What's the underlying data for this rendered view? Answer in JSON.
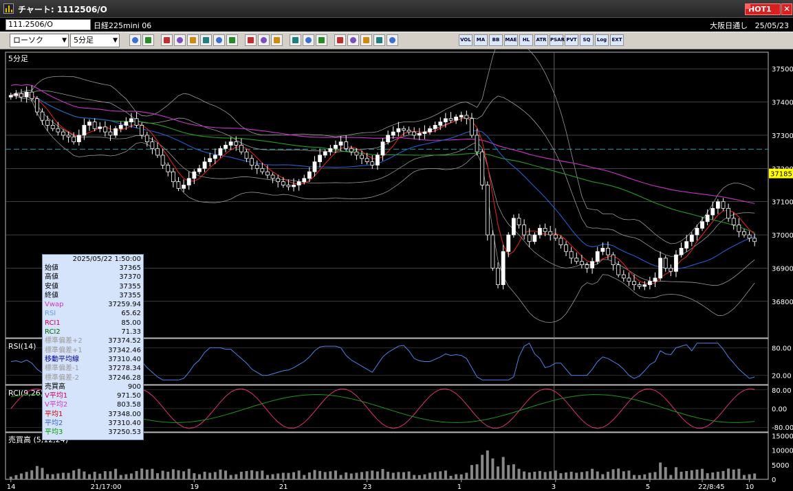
{
  "window": {
    "title": "チャート: 1112506/O",
    "hot_badge": "HOT1",
    "close_glyph": "✕"
  },
  "infobar": {
    "symbol_code": "111.2506/O",
    "symbol_name": "日経225mini 06",
    "market": "大阪日通し",
    "date": "25/05/23"
  },
  "toolbar": {
    "chart_type": "ローソク",
    "interval": "5分足",
    "buttons": [
      "search-icon",
      "window-icon",
      "pencil-icon",
      "magnet-icon",
      "cursor-icon",
      "undo-icon",
      "list-icon",
      "trash-icon",
      "candle-icon",
      "candle-icon",
      "all-icon",
      "settings-icon",
      "brush-icon",
      "palette-icon",
      "hand-icon",
      "zoom-icon",
      "grid-icon",
      "marker-icon",
      "alert-icon"
    ],
    "text_buttons": [
      "VOL",
      "MA",
      "BB",
      "MAE",
      "HL",
      "ATR",
      "PSAR",
      "PVT",
      "SQ",
      "Log",
      "EXT"
    ],
    "accent": "#d4d0c8"
  },
  "chart_data": {
    "type": "candlestick",
    "interval_label": "5分足",
    "price_axis": {
      "ticks": [
        37500,
        37400,
        37300,
        37200,
        37100,
        37000,
        36900,
        36800
      ],
      "current_price": "37185",
      "ylim": [
        36690,
        37550
      ]
    },
    "x_ticks": [
      "14",
      "21/17:00",
      "19",
      "21",
      "23",
      "1",
      "3",
      "5",
      "22/8:45",
      "10"
    ],
    "close": [
      37420,
      37425,
      37415,
      37430,
      37410,
      37370,
      37345,
      37330,
      37320,
      37310,
      37300,
      37295,
      37280,
      37300,
      37330,
      37340,
      37320,
      37325,
      37310,
      37300,
      37320,
      37330,
      37340,
      37350,
      37330,
      37300,
      37280,
      37260,
      37240,
      37210,
      37190,
      37160,
      37140,
      37150,
      37170,
      37190,
      37200,
      37220,
      37230,
      37240,
      37260,
      37270,
      37280,
      37270,
      37250,
      37230,
      37210,
      37200,
      37190,
      37180,
      37170,
      37160,
      37150,
      37145,
      37150,
      37160,
      37170,
      37190,
      37220,
      37240,
      37250,
      37260,
      37270,
      37280,
      37260,
      37250,
      37240,
      37230,
      37220,
      37210,
      37240,
      37280,
      37300,
      37310,
      37320,
      37315,
      37310,
      37300,
      37305,
      37310,
      37320,
      37330,
      37340,
      37350,
      37345,
      37355,
      37360,
      37350,
      37300,
      37250,
      37150,
      37000,
      36900,
      36850,
      36950,
      37000,
      37050,
      37030,
      37000,
      36980,
      37000,
      37020,
      37010,
      37000,
      36990,
      36970,
      36950,
      36930,
      36920,
      36910,
      36900,
      36920,
      36950,
      36960,
      36940,
      36910,
      36880,
      36870,
      36860,
      36850,
      36845,
      36850,
      36860,
      36870,
      36930,
      36900,
      36890,
      36940,
      36960,
      36980,
      37000,
      37020,
      37040,
      37060,
      37080,
      37100,
      37080,
      37050,
      37030,
      37010,
      37000,
      36990,
      36980
    ],
    "overlays": {
      "vwap": "37259.94",
      "bb_ma": "37310.40",
      "mid_line": 37258
    },
    "indicators": {
      "rsi": {
        "label": "RSI(14)",
        "ticks": [
          "80.00",
          "20.00"
        ]
      },
      "rci": {
        "label": "RCI(9,26)",
        "ticks": [
          "80.00",
          "0.00",
          "-80.00"
        ]
      },
      "volume": {
        "label": "売買高 (5,12,24)",
        "ticks": [
          "15000",
          "10000",
          "5000",
          "0"
        ]
      }
    },
    "series": [
      {
        "name": "Vwap",
        "color": "#cc33cc"
      },
      {
        "name": "移動平均線",
        "color": "#2060d0"
      },
      {
        "name": "平均1",
        "color": "#e02020"
      },
      {
        "name": "平均3",
        "color": "#20a020"
      }
    ]
  },
  "info_panel": {
    "timestamp": "2025/05/22 1:50:00",
    "rows": [
      {
        "label": "始値",
        "value": "37365",
        "color": "#000000"
      },
      {
        "label": "高値",
        "value": "37370",
        "color": "#000000"
      },
      {
        "label": "安値",
        "value": "37355",
        "color": "#000000"
      },
      {
        "label": "終値",
        "value": "37355",
        "color": "#000000"
      },
      {
        "label": "Vwap",
        "value": "37259.94",
        "color": "#cc33cc"
      },
      {
        "label": "RSI",
        "value": "65.62",
        "color": "#6699ff"
      },
      {
        "label": "RCI1",
        "value": "85.00",
        "color": "#cc0066"
      },
      {
        "label": "RCI2",
        "value": "71.33",
        "color": "#006600"
      },
      {
        "label": "標準偏差+2",
        "value": "37374.52",
        "color": "#999999"
      },
      {
        "label": "標準偏差+1",
        "value": "37342.46",
        "color": "#999999"
      },
      {
        "label": "移動平均線",
        "value": "37310.40",
        "color": "#000099"
      },
      {
        "label": "標準偏差-1",
        "value": "37278.34",
        "color": "#999999"
      },
      {
        "label": "標準偏差-2",
        "value": "37246.28",
        "color": "#999999"
      },
      {
        "label": "売買高",
        "value": "900",
        "color": "#000000"
      },
      {
        "label": "V平均1",
        "value": "971.50",
        "color": "#cc0066"
      },
      {
        "label": "V平均2",
        "value": "803.58",
        "color": "#cc33cc"
      },
      {
        "label": "平均1",
        "value": "37348.00",
        "color": "#cc0000"
      },
      {
        "label": "平均2",
        "value": "37310.40",
        "color": "#3366cc"
      },
      {
        "label": "平均3",
        "value": "37250.53",
        "color": "#009900"
      }
    ]
  }
}
